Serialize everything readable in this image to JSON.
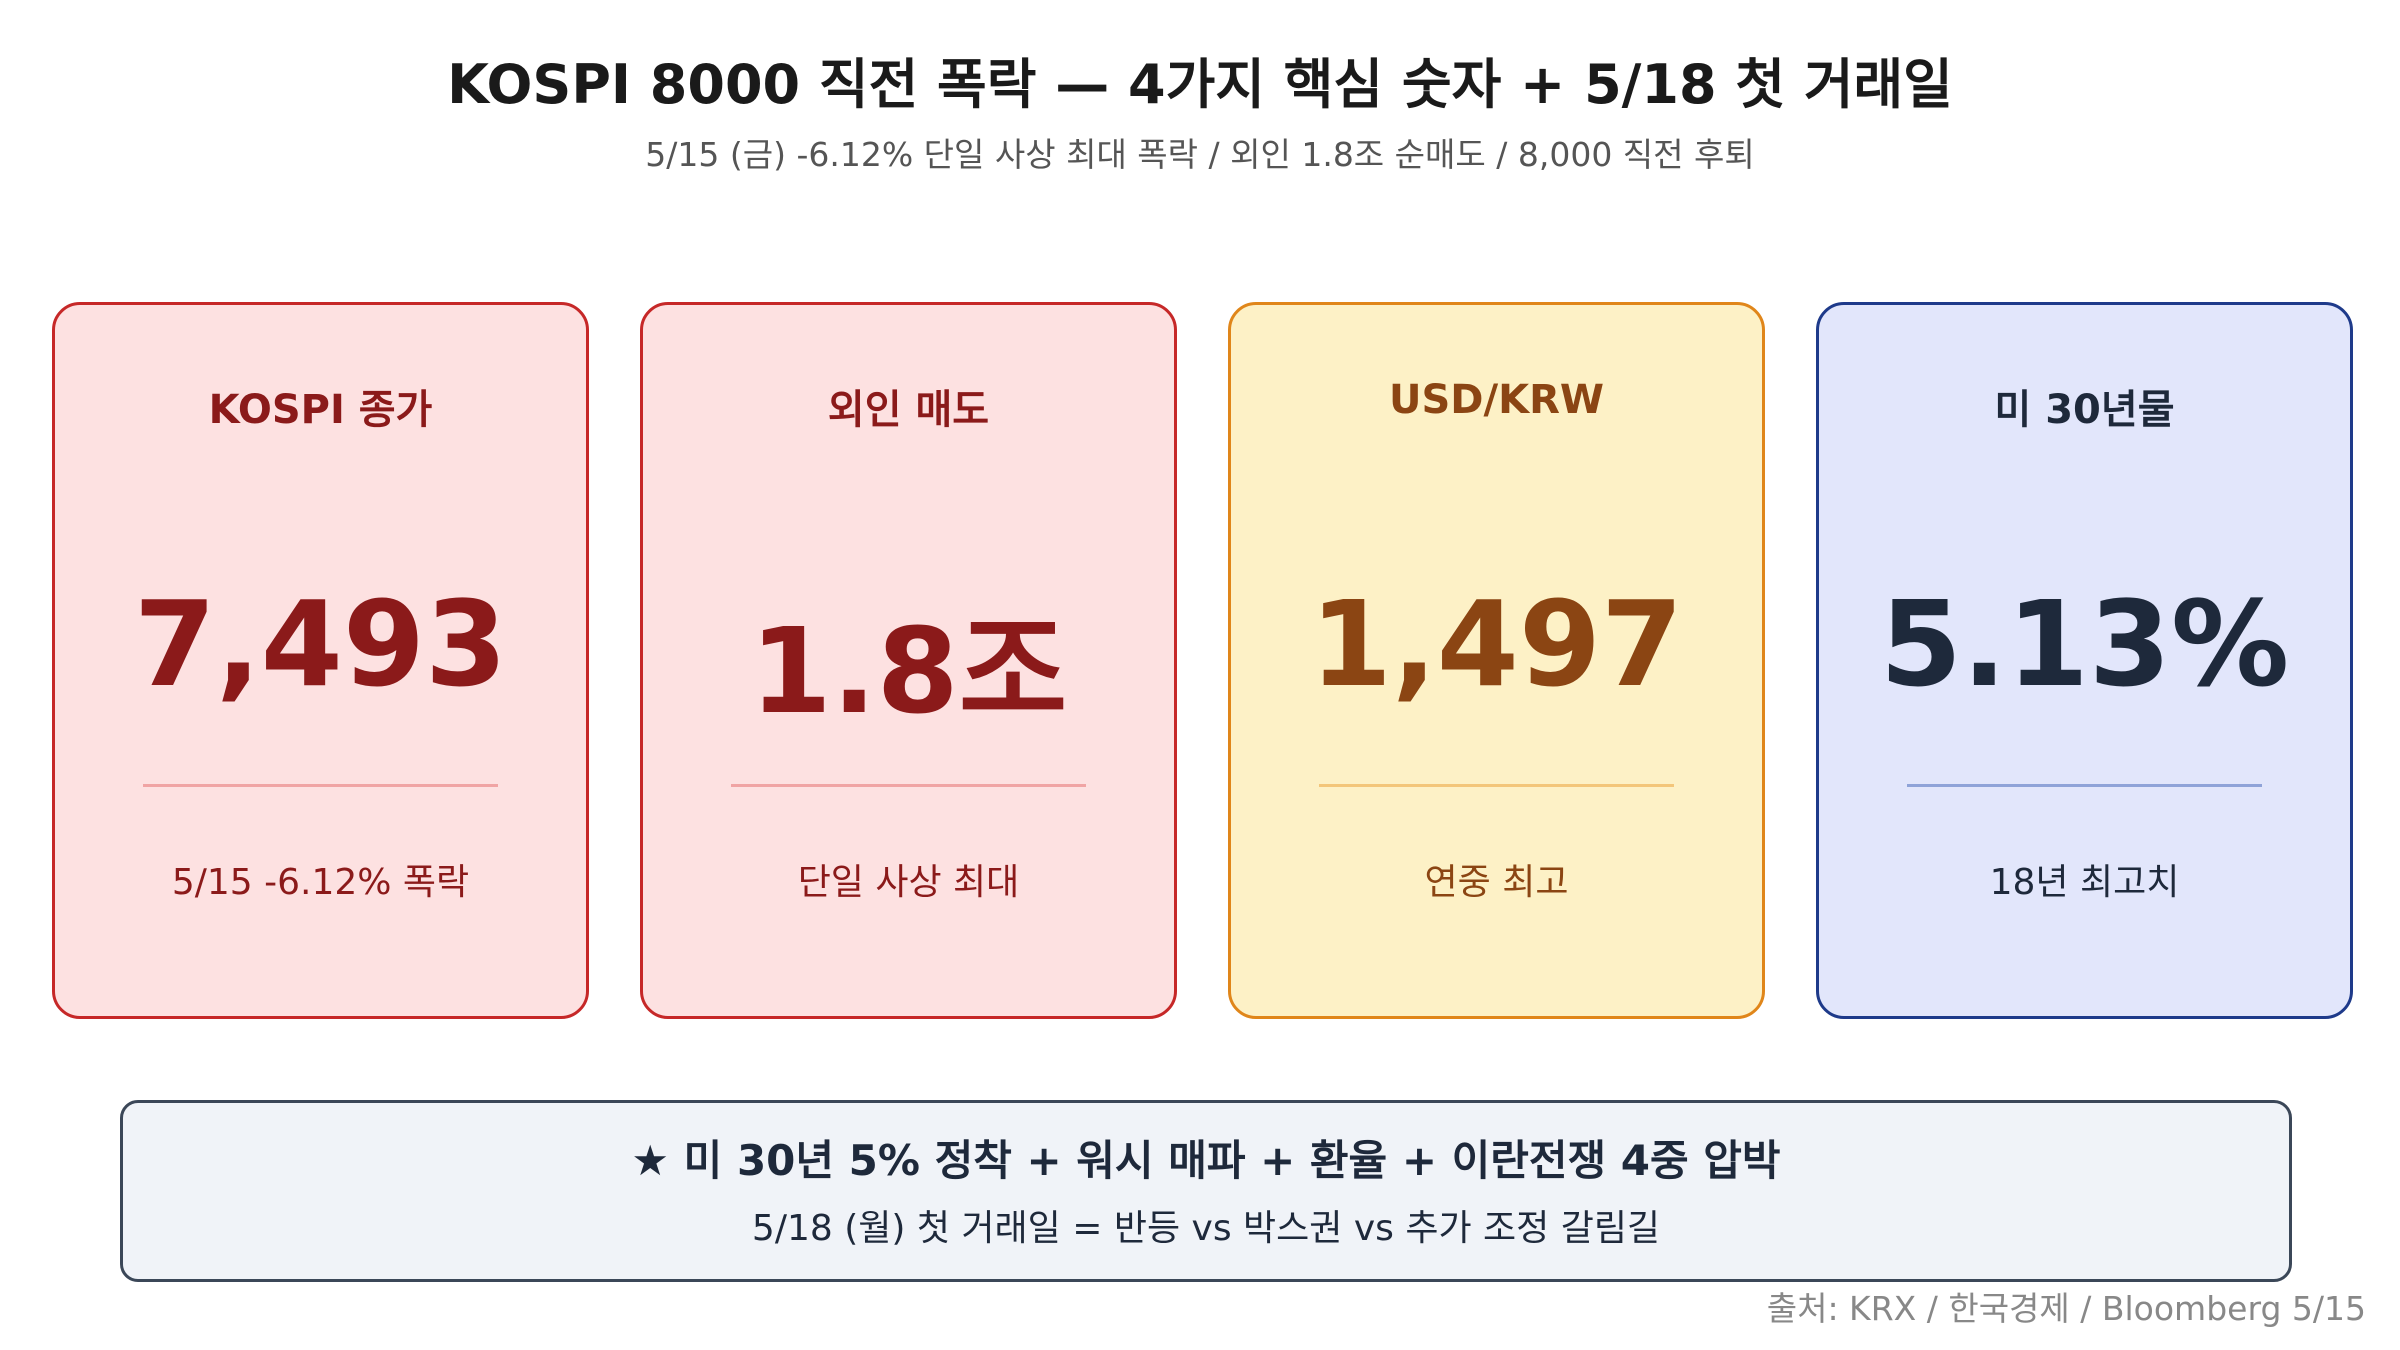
{
  "header": {
    "title": "KOSPI 8000 직전 폭락 — 4가지 핵심 숫자 + 5/18 첫 거래일",
    "subtitle": "5/15 (금) -6.12% 단일 사상 최대 폭락 / 외인 1.8조 순매도 / 8,000 직전 후퇴"
  },
  "cards": [
    {
      "label": "KOSPI 종가",
      "value": "7,493",
      "note": "5/15 -6.12% 폭락"
    },
    {
      "label": "외인 매도",
      "value": "1.8조",
      "note": "단일 사상 최대"
    },
    {
      "label": "USD/KRW",
      "value": "1,497",
      "note": "연중 최고"
    },
    {
      "label": "미 30년물",
      "value": "5.13%",
      "note": "18년 최고치"
    }
  ],
  "summary": {
    "headline": "★ 미 30년 5% 정착 + 워시 매파 + 환율 + 이란전쟁 4중 압박",
    "detail": "5/18 (월) 첫 거래일 = 반등 vs 박스권 vs 추가 조정 갈림길"
  },
  "source": "출처: KRX / 한국경제 / Bloomberg 5/15"
}
